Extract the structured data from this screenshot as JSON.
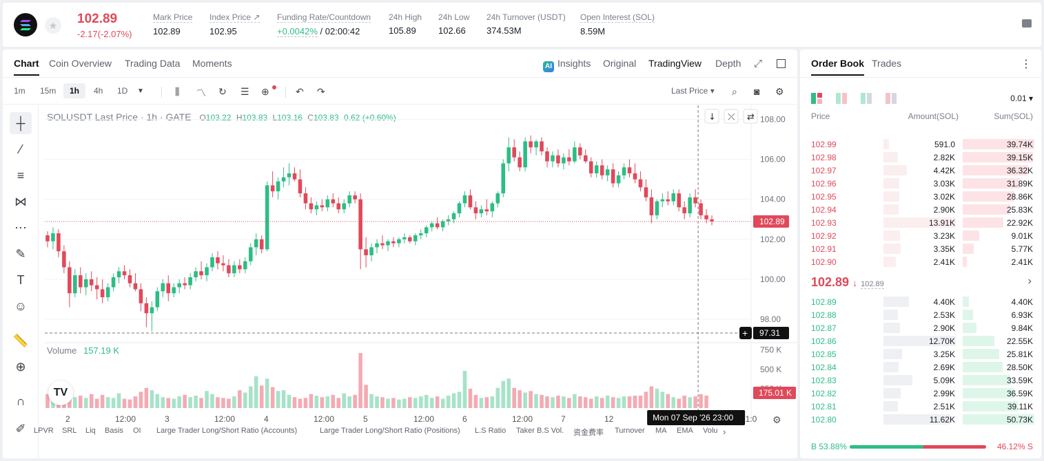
{
  "header": {
    "price": "102.89",
    "change": "-2.17(-2.07%)",
    "stats": [
      {
        "label": "Mark Price",
        "value": "102.89"
      },
      {
        "label": "Index Price ↗",
        "value": "102.95"
      },
      {
        "label": "Funding Rate/Countdown",
        "value_rate": "+0.0042%",
        "value_countdown": "/ 02:00:42"
      },
      {
        "label": "24h High",
        "value": "105.89"
      },
      {
        "label": "24h Low",
        "value": "102.66"
      },
      {
        "label": "24h Turnover (USDT)",
        "value": "374.53M"
      },
      {
        "label": "Open Interest (SOL)",
        "value": "8.59M"
      }
    ]
  },
  "chart_tabs": [
    "Chart",
    "Coin Overview",
    "Trading Data",
    "Moments"
  ],
  "view_tabs": {
    "insights": "Insights",
    "original": "Original",
    "tradingview": "TradingView",
    "depth": "Depth"
  },
  "timeframes": [
    "1m",
    "15m",
    "1h",
    "4h",
    "1D"
  ],
  "last_price_select": "Last Price",
  "legend": {
    "symbol": "SOLUSDT Last Price · 1h · GATE",
    "o_label": "O",
    "o": "103.22",
    "h_label": "H",
    "h": "103.83",
    "l_label": "L",
    "l": "103.16",
    "c_label": "C",
    "c": "103.83",
    "chg": "0.62 (+0.60%)"
  },
  "volume_legend": {
    "label": "Volume",
    "value": "157.19 K"
  },
  "y_axis": [
    "108.00",
    "106.00",
    "104.00",
    "102.00",
    "100.00",
    "98.00"
  ],
  "vol_axis": [
    "750 K",
    "500 K",
    "250 K"
  ],
  "price_tag": "102.89",
  "crosshair_tag": "97.31",
  "vol_tag": "175.01 K",
  "x_axis": [
    "2",
    "12:00",
    "3",
    "12:00",
    "4",
    "12:00",
    "5",
    "12:00",
    "6",
    "12:00",
    "7",
    "12",
    "2:00",
    "21:0"
  ],
  "crosshair_time": "Mon 07 Sep '26   23:00",
  "indicators": [
    "LPVR",
    "SRL",
    "Liq",
    "Basis",
    "OI",
    "Large Trader Long/Short Ratio (Accounts)",
    "Large Trader Long/Short Ratio (Positions)",
    "L.S Ratio",
    "Taker B.S Vol.",
    "资金费率",
    "Turnover",
    "MA",
    "EMA",
    "Volu"
  ],
  "chart_data": {
    "type": "candlestick",
    "x_ticks": [
      "2",
      "12:00",
      "3",
      "12:00",
      "4",
      "12:00",
      "5",
      "12:00",
      "6",
      "12:00",
      "7",
      "12:00"
    ],
    "ylim": [
      97.0,
      108.5
    ],
    "volume_ylim": [
      0,
      800
    ],
    "candles": [
      [
        102.2,
        102.4,
        101.6,
        101.9
      ],
      [
        101.9,
        102.6,
        101.5,
        102.3
      ],
      [
        102.3,
        102.5,
        101.1,
        101.4
      ],
      [
        101.4,
        101.7,
        100.3,
        100.6
      ],
      [
        100.6,
        100.9,
        98.6,
        99.3
      ],
      [
        99.3,
        100.5,
        99.1,
        100.2
      ],
      [
        100.2,
        100.6,
        99.3,
        99.6
      ],
      [
        99.6,
        100.3,
        99.2,
        100.0
      ],
      [
        100.0,
        100.4,
        99.4,
        99.7
      ],
      [
        99.7,
        100.1,
        99.0,
        99.5
      ],
      [
        99.5,
        100.0,
        98.8,
        99.1
      ],
      [
        99.1,
        99.8,
        98.9,
        99.6
      ],
      [
        99.6,
        100.3,
        99.4,
        100.1
      ],
      [
        100.1,
        100.6,
        99.8,
        100.4
      ],
      [
        100.4,
        100.7,
        100.0,
        100.2
      ],
      [
        100.2,
        100.5,
        99.6,
        99.8
      ],
      [
        99.8,
        100.3,
        99.4,
        99.5
      ],
      [
        99.5,
        99.8,
        98.4,
        98.8
      ],
      [
        98.8,
        99.1,
        97.6,
        98.3
      ],
      [
        98.3,
        98.9,
        97.4,
        98.6
      ],
      [
        98.6,
        99.6,
        98.4,
        99.4
      ],
      [
        99.4,
        100.0,
        99.1,
        99.8
      ],
      [
        99.8,
        100.2,
        98.9,
        99.3
      ],
      [
        99.3,
        99.8,
        99.1,
        99.6
      ],
      [
        99.6,
        100.0,
        99.3,
        99.8
      ],
      [
        99.8,
        100.1,
        99.5,
        99.7
      ],
      [
        99.7,
        100.3,
        99.5,
        100.1
      ],
      [
        100.1,
        100.6,
        99.9,
        100.4
      ],
      [
        100.4,
        100.9,
        100.0,
        100.2
      ],
      [
        100.2,
        100.8,
        99.9,
        100.6
      ],
      [
        100.6,
        101.3,
        100.4,
        101.1
      ],
      [
        101.1,
        101.4,
        100.5,
        100.8
      ],
      [
        100.8,
        101.2,
        100.4,
        100.7
      ],
      [
        100.7,
        101.0,
        100.1,
        100.3
      ],
      [
        100.3,
        100.9,
        100.1,
        100.7
      ],
      [
        100.7,
        101.0,
        100.3,
        100.5
      ],
      [
        100.5,
        101.1,
        100.3,
        100.9
      ],
      [
        100.9,
        101.8,
        100.7,
        101.6
      ],
      [
        101.6,
        102.3,
        101.2,
        102.0
      ],
      [
        102.0,
        102.2,
        101.3,
        101.5
      ],
      [
        101.5,
        104.9,
        101.4,
        104.7
      ],
      [
        104.7,
        105.4,
        104.1,
        104.4
      ],
      [
        104.4,
        105.1,
        104.0,
        104.9
      ],
      [
        104.9,
        105.6,
        104.6,
        105.1
      ],
      [
        105.1,
        105.8,
        104.7,
        105.3
      ],
      [
        105.3,
        105.6,
        104.9,
        105.0
      ],
      [
        105.0,
        105.5,
        104.1,
        104.3
      ],
      [
        104.3,
        104.6,
        103.5,
        103.8
      ],
      [
        103.8,
        104.1,
        103.3,
        103.5
      ],
      [
        103.5,
        103.9,
        103.2,
        103.7
      ],
      [
        103.7,
        104.0,
        103.4,
        103.6
      ],
      [
        103.6,
        104.2,
        103.4,
        104.0
      ],
      [
        104.0,
        104.3,
        103.6,
        103.8
      ],
      [
        103.8,
        104.1,
        103.3,
        103.5
      ],
      [
        103.5,
        104.0,
        103.3,
        103.8
      ],
      [
        103.8,
        104.4,
        103.6,
        104.2
      ],
      [
        104.2,
        104.4,
        103.8,
        104.0
      ],
      [
        104.0,
        104.3,
        100.5,
        101.5
      ],
      [
        101.5,
        102.1,
        100.6,
        101.2
      ],
      [
        101.2,
        101.8,
        100.9,
        101.6
      ],
      [
        101.6,
        102.0,
        101.3,
        101.8
      ],
      [
        101.8,
        102.2,
        101.5,
        101.7
      ],
      [
        101.7,
        102.0,
        101.4,
        101.9
      ],
      [
        101.9,
        102.1,
        101.6,
        101.8
      ],
      [
        101.8,
        102.1,
        101.6,
        102.0
      ],
      [
        102.0,
        102.3,
        101.8,
        102.1
      ],
      [
        102.1,
        102.2,
        101.8,
        101.9
      ],
      [
        101.9,
        102.3,
        101.7,
        102.2
      ],
      [
        102.2,
        102.5,
        102.0,
        102.3
      ],
      [
        102.3,
        102.7,
        102.1,
        102.6
      ],
      [
        102.6,
        102.9,
        102.4,
        102.8
      ],
      [
        102.8,
        103.1,
        102.5,
        102.6
      ],
      [
        102.6,
        103.0,
        102.4,
        102.9
      ],
      [
        102.9,
        103.2,
        102.7,
        103.0
      ],
      [
        103.0,
        103.4,
        102.8,
        103.3
      ],
      [
        103.3,
        103.9,
        103.1,
        103.8
      ],
      [
        103.8,
        104.4,
        103.6,
        104.2
      ],
      [
        104.2,
        104.5,
        103.5,
        103.6
      ],
      [
        103.6,
        103.9,
        103.0,
        103.3
      ],
      [
        103.3,
        103.7,
        103.1,
        103.5
      ],
      [
        103.5,
        104.0,
        103.2,
        103.4
      ],
      [
        103.4,
        103.9,
        103.1,
        103.8
      ],
      [
        103.8,
        104.4,
        103.6,
        104.3
      ],
      [
        104.3,
        106.0,
        104.1,
        105.8
      ],
      [
        105.8,
        107.1,
        105.4,
        106.6
      ],
      [
        106.6,
        107.0,
        105.9,
        106.1
      ],
      [
        106.1,
        106.4,
        105.4,
        105.6
      ],
      [
        105.6,
        107.1,
        105.4,
        106.9
      ],
      [
        106.9,
        107.2,
        106.3,
        106.6
      ],
      [
        106.6,
        107.0,
        106.2,
        106.9
      ],
      [
        106.9,
        107.1,
        106.2,
        106.4
      ],
      [
        106.4,
        106.6,
        105.6,
        105.9
      ],
      [
        105.9,
        106.4,
        105.6,
        106.2
      ],
      [
        106.2,
        106.5,
        105.6,
        105.8
      ],
      [
        105.8,
        106.3,
        105.5,
        106.1
      ],
      [
        106.1,
        106.5,
        105.7,
        105.9
      ],
      [
        105.9,
        106.9,
        105.8,
        106.6
      ],
      [
        106.6,
        106.8,
        106.0,
        106.2
      ],
      [
        106.2,
        106.5,
        105.8,
        105.9
      ],
      [
        105.9,
        106.1,
        105.1,
        105.3
      ],
      [
        105.3,
        105.9,
        105.1,
        105.7
      ],
      [
        105.7,
        106.0,
        105.0,
        105.2
      ],
      [
        105.2,
        105.7,
        104.9,
        105.5
      ],
      [
        105.5,
        105.8,
        104.6,
        104.8
      ],
      [
        104.8,
        105.4,
        104.6,
        105.2
      ],
      [
        105.2,
        105.8,
        105.0,
        105.6
      ],
      [
        105.6,
        106.0,
        105.1,
        105.3
      ],
      [
        105.3,
        105.8,
        104.8,
        105.0
      ],
      [
        105.0,
        105.4,
        104.4,
        104.6
      ],
      [
        104.6,
        105.0,
        103.9,
        104.1
      ],
      [
        104.1,
        104.5,
        102.8,
        103.2
      ],
      [
        103.2,
        104.0,
        103.0,
        103.9
      ],
      [
        103.9,
        104.3,
        103.6,
        104.0
      ],
      [
        104.0,
        104.4,
        103.7,
        103.9
      ],
      [
        103.9,
        104.5,
        103.7,
        104.3
      ],
      [
        104.3,
        104.5,
        103.4,
        103.6
      ],
      [
        103.6,
        103.9,
        103.0,
        103.3
      ],
      [
        103.3,
        104.3,
        103.1,
        104.1
      ],
      [
        104.1,
        104.5,
        103.6,
        103.8
      ],
      [
        103.8,
        104.0,
        103.0,
        103.2
      ],
      [
        103.2,
        103.5,
        102.8,
        103.0
      ],
      [
        103.0,
        103.2,
        102.7,
        102.9
      ]
    ],
    "volume": [
      180,
      150,
      210,
      120,
      270,
      140,
      160,
      130,
      180,
      120,
      170,
      140,
      130,
      190,
      120,
      110,
      150,
      210,
      260,
      230,
      180,
      140,
      130,
      120,
      150,
      170,
      140,
      160,
      130,
      220,
      180,
      140,
      130,
      120,
      150,
      230,
      200,
      280,
      410,
      290,
      380,
      270,
      220,
      230,
      170,
      140,
      120,
      130,
      180,
      160,
      140,
      150,
      170,
      130,
      190,
      150,
      170,
      710,
      300,
      180,
      150,
      140,
      120,
      130,
      110,
      120,
      140,
      130,
      150,
      170,
      130,
      150,
      120,
      160,
      190,
      210,
      480,
      250,
      170,
      130,
      140,
      150,
      260,
      350,
      380,
      260,
      230,
      200,
      220,
      180,
      170,
      150,
      140,
      160,
      150,
      130,
      180,
      150,
      140,
      120,
      150,
      130,
      160,
      140,
      130,
      150,
      150,
      160,
      160,
      210,
      280,
      250,
      210,
      180,
      140,
      120,
      160,
      140,
      150,
      180,
      160
    ],
    "candle_colors": {
      "up": "#2dbd85",
      "down": "#e0495a"
    }
  },
  "orderbook": {
    "tabs": [
      "Order Book",
      "Trades"
    ],
    "tick": "0.01",
    "headers": {
      "price": "Price",
      "amount": "Amount(SOL)",
      "sum": "Sum(SOL)"
    },
    "asks": [
      {
        "p": "102.99",
        "a": "591.0",
        "s": "39.74K",
        "af": 0.04,
        "sf": 1.0
      },
      {
        "p": "102.98",
        "a": "2.82K",
        "s": "39.15K",
        "af": 0.2,
        "sf": 0.98
      },
      {
        "p": "102.97",
        "a": "4.42K",
        "s": "36.32K",
        "af": 0.32,
        "sf": 0.91
      },
      {
        "p": "102.96",
        "a": "3.03K",
        "s": "31.89K",
        "af": 0.22,
        "sf": 0.8
      },
      {
        "p": "102.95",
        "a": "3.02K",
        "s": "28.86K",
        "af": 0.22,
        "sf": 0.72
      },
      {
        "p": "102.94",
        "a": "2.90K",
        "s": "25.83K",
        "af": 0.21,
        "sf": 0.65
      },
      {
        "p": "102.93",
        "a": "13.91K",
        "s": "22.92K",
        "af": 1.0,
        "sf": 0.57
      },
      {
        "p": "102.92",
        "a": "3.23K",
        "s": "9.01K",
        "af": 0.23,
        "sf": 0.23
      },
      {
        "p": "102.91",
        "a": "3.35K",
        "s": "5.77K",
        "af": 0.24,
        "sf": 0.15
      },
      {
        "p": "102.90",
        "a": "2.41K",
        "s": "2.41K",
        "af": 0.17,
        "sf": 0.06
      }
    ],
    "mid": {
      "price": "102.89",
      "arrow": "↓",
      "mark": "102.89"
    },
    "bids": [
      {
        "p": "102.89",
        "a": "4.40K",
        "s": "4.40K",
        "af": 0.35,
        "sf": 0.09
      },
      {
        "p": "102.88",
        "a": "2.53K",
        "s": "6.93K",
        "af": 0.2,
        "sf": 0.14
      },
      {
        "p": "102.87",
        "a": "2.90K",
        "s": "9.84K",
        "af": 0.23,
        "sf": 0.19
      },
      {
        "p": "102.86",
        "a": "12.70K",
        "s": "22.55K",
        "af": 1.0,
        "sf": 0.44
      },
      {
        "p": "102.85",
        "a": "3.25K",
        "s": "25.81K",
        "af": 0.26,
        "sf": 0.51
      },
      {
        "p": "102.84",
        "a": "2.69K",
        "s": "28.50K",
        "af": 0.21,
        "sf": 0.56
      },
      {
        "p": "102.83",
        "a": "5.09K",
        "s": "33.59K",
        "af": 0.4,
        "sf": 0.66
      },
      {
        "p": "102.82",
        "a": "2.99K",
        "s": "36.59K",
        "af": 0.24,
        "sf": 0.72
      },
      {
        "p": "102.81",
        "a": "2.51K",
        "s": "39.11K",
        "af": 0.2,
        "sf": 0.77
      },
      {
        "p": "102.80",
        "a": "11.62K",
        "s": "50.73K",
        "af": 0.92,
        "sf": 1.0
      }
    ],
    "ratio": {
      "buy_label": "B 53.88%",
      "sell_label": "46.12% S",
      "buy_frac": 0.5388
    }
  }
}
